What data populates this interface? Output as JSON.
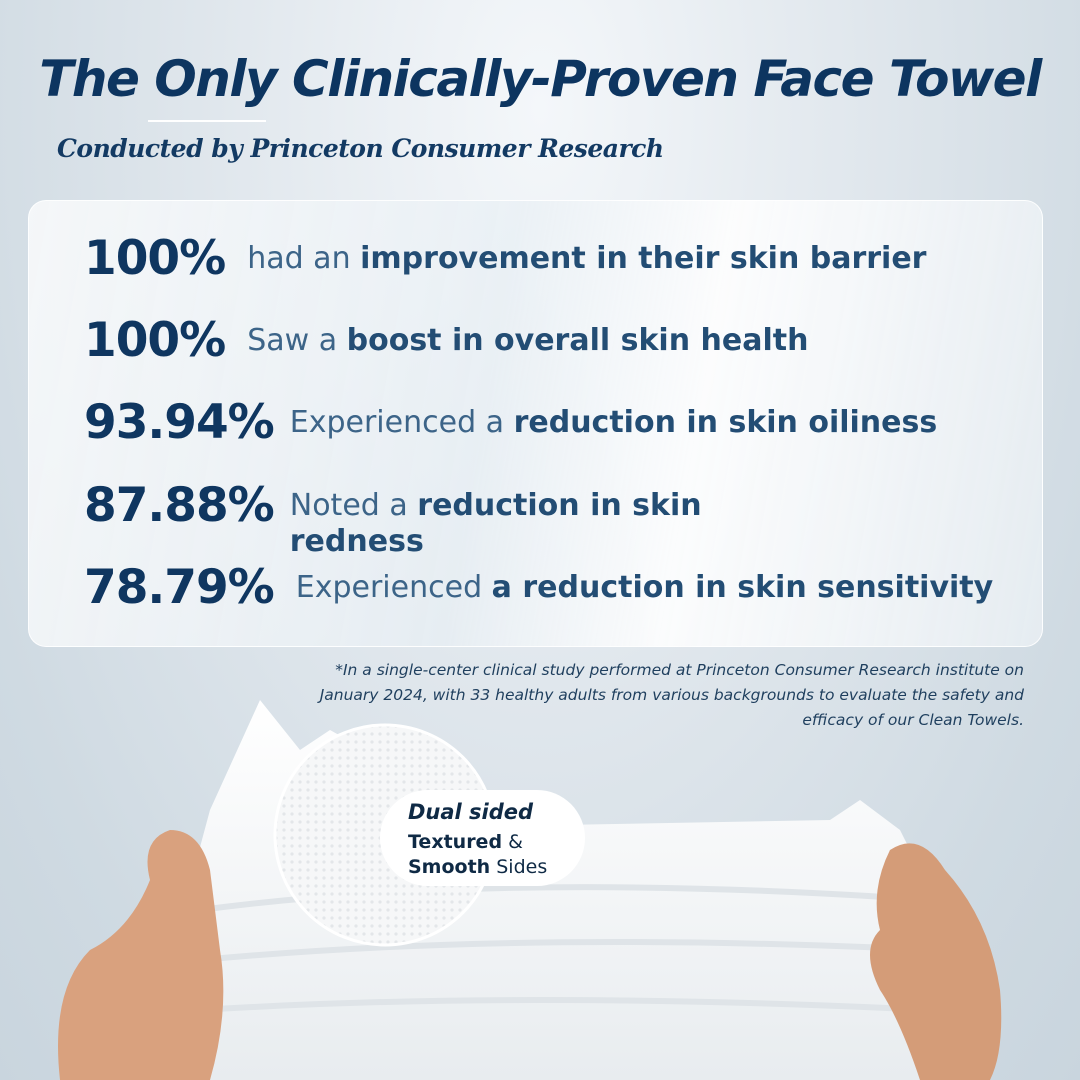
{
  "title": "The Only Clinically-Proven Face Towel",
  "subtitle": "Conducted by Princeton Consumer Research",
  "stats": [
    {
      "percent": "100%",
      "pre": "had an ",
      "bold": "improvement in their skin barrier",
      "post": ""
    },
    {
      "percent": "100%",
      "pre": "Saw a ",
      "bold": "boost in overall skin health",
      "post": ""
    },
    {
      "percent": "93.94%",
      "pre": "Experienced a ",
      "bold": "reduction in skin oiliness",
      "post": ""
    },
    {
      "percent": "87.88%",
      "pre": "Noted a ",
      "bold": "reduction in skin redness",
      "post": ""
    },
    {
      "percent": "78.79%",
      "pre": "Experienced ",
      "bold": "a reduction in skin sensitivity",
      "post": ""
    }
  ],
  "footnote": "*In a single-center clinical study performed at Princeton Consumer Research institute on January 2024, with 33 healthy adults from various backgrounds to evaluate the safety and efficacy of our Clean Towels.",
  "badge": {
    "line1": "Dual sided",
    "line2_bold": "Textured",
    "line2_rest": " &",
    "line3_bold": "Smooth",
    "line3_rest": " Sides"
  },
  "colors": {
    "navy": "#0d3560",
    "text": "#3c6488",
    "background": "#cfdae2"
  }
}
